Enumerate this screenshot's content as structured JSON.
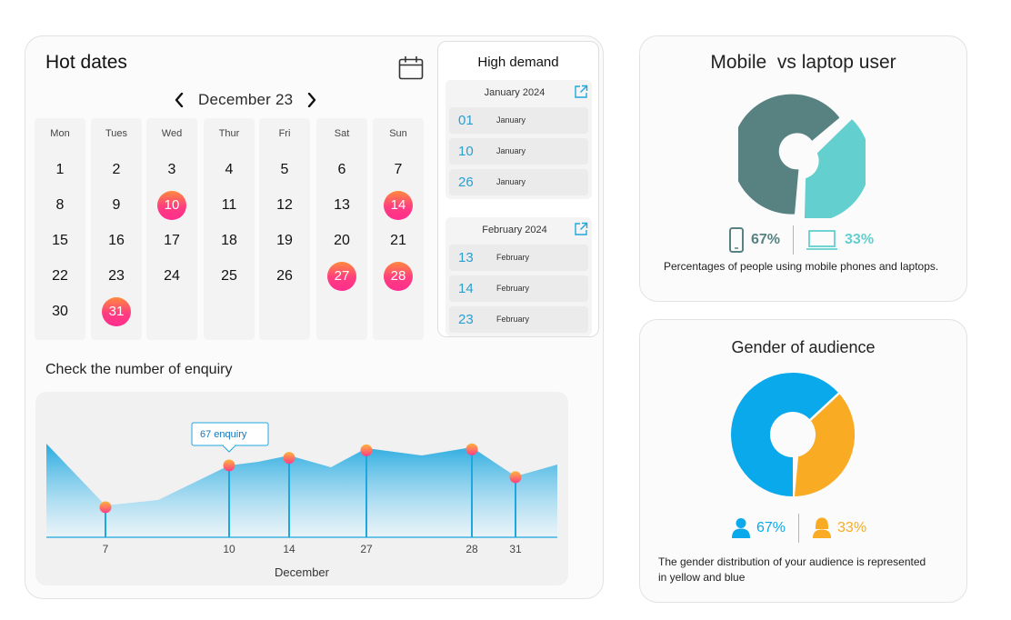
{
  "hot_dates": {
    "title": "Hot dates",
    "month_label": "December 23",
    "weekdays": [
      "Mon",
      "Tues",
      "Wed",
      "Thur",
      "Fri",
      "Sat",
      "Sun"
    ],
    "weeks": [
      [
        "1",
        "2",
        "3",
        "4",
        "5",
        "6",
        "7"
      ],
      [
        "8",
        "9",
        "10",
        "11",
        "12",
        "13",
        "14"
      ],
      [
        "15",
        "16",
        "17",
        "18",
        "19",
        "20",
        "21"
      ],
      [
        "22",
        "23",
        "24",
        "25",
        "26",
        "27",
        "28"
      ],
      [
        "30",
        "31",
        "",
        "",
        "",
        "",
        ""
      ]
    ],
    "hot_days": [
      "10",
      "14",
      "27",
      "28",
      "31"
    ]
  },
  "high_demand": {
    "title": "High demand",
    "groups": [
      {
        "title": "January 2024",
        "entries": [
          {
            "day": "01",
            "month": "January"
          },
          {
            "day": "10",
            "month": "January"
          },
          {
            "day": "26",
            "month": "January"
          }
        ]
      },
      {
        "title": "February 2024",
        "entries": [
          {
            "day": "13",
            "month": "February"
          },
          {
            "day": "14",
            "month": "February"
          },
          {
            "day": "23",
            "month": "February"
          }
        ]
      }
    ]
  },
  "enquiry": {
    "title": "Check the number of enquiry",
    "tooltip": "67 enquiry"
  },
  "chart_data": {
    "type": "area",
    "xlabel": "December",
    "x_ticks": [
      "7",
      "10",
      "14",
      "27",
      "28",
      "31"
    ],
    "highlighted_points": [
      {
        "x": "7",
        "value": 28
      },
      {
        "x": "10",
        "value": 67
      },
      {
        "x": "14",
        "value": 74
      },
      {
        "x": "27",
        "value": 81
      },
      {
        "x": "28",
        "value": 82
      },
      {
        "x": "31",
        "value": 56
      }
    ],
    "tooltip": {
      "x": "10",
      "text": "67 enquiry"
    },
    "colors": {
      "fill_top": "#1ea7df",
      "line": "#1ea7df",
      "marker_top": "#ffb43a",
      "marker_bottom": "#ff3d86"
    }
  },
  "mobile_vs_laptop": {
    "title": "Mobile  vs laptop user",
    "mobile_pct": "67%",
    "laptop_pct": "33%",
    "mobile_icon": "smartphone-icon",
    "laptop_icon": "laptop-icon",
    "description": "Percentages of people using mobile phones and laptops.",
    "colors": {
      "mobile": "#588282",
      "laptop": "#63cfcf"
    }
  },
  "gender": {
    "title": "Gender of audience",
    "male_pct": "67%",
    "female_pct": "33%",
    "male_icon": "male-user-icon",
    "female_icon": "female-user-icon",
    "description": "The gender distribution of your audience is represented in yellow and blue",
    "colors": {
      "male": "#0aa9ec",
      "female": "#f9ab23"
    }
  }
}
